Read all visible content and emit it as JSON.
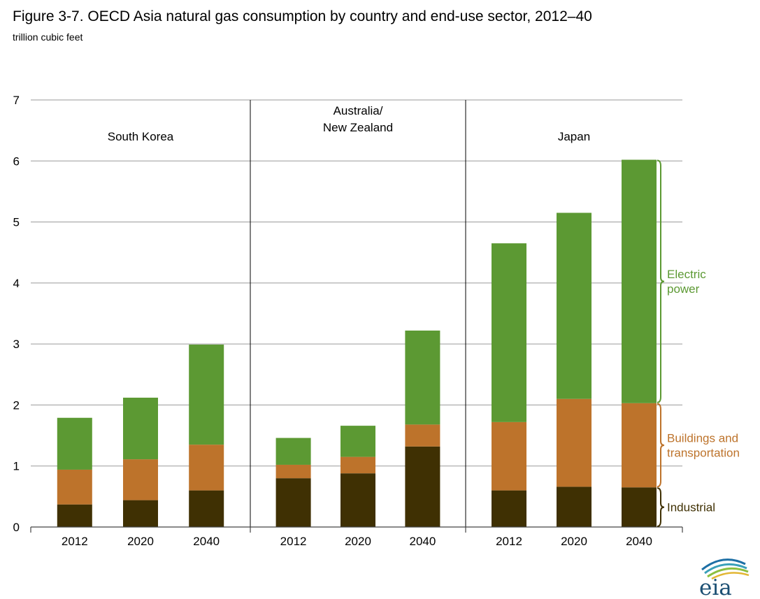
{
  "title": "Figure 3-7. OECD Asia natural gas consumption by country and end-use sector, 2012–40",
  "subtitle": "trillion cubic feet",
  "logo_text": "eia",
  "colors": {
    "industrial": "#3f3003",
    "buildings": "#bd732b",
    "electric": "#5c9933",
    "grid": "#9a9a9a",
    "axis": "#444444"
  },
  "chart_data": {
    "type": "bar",
    "stacked": true,
    "ylim": [
      0,
      7
    ],
    "yticks": [
      0,
      1,
      2,
      3,
      4,
      5,
      6,
      7
    ],
    "grid": true,
    "groups": [
      {
        "name": "South Korea",
        "label_lines": [
          "South Korea"
        ],
        "categories": [
          "2012",
          "2020",
          "2040"
        ]
      },
      {
        "name": "Australia/ New Zealand",
        "label_lines": [
          "Australia/",
          "New Zealand"
        ],
        "categories": [
          "2012",
          "2020",
          "2040"
        ]
      },
      {
        "name": "Japan",
        "label_lines": [
          "Japan"
        ],
        "categories": [
          "2012",
          "2020",
          "2040"
        ]
      }
    ],
    "series": [
      {
        "name": "Industrial",
        "label_lines": [
          "Industrial"
        ],
        "color": "#3f3003",
        "values": [
          0.37,
          0.44,
          0.6,
          0.8,
          0.88,
          1.32,
          0.6,
          0.66,
          0.65
        ]
      },
      {
        "name": "Buildings and transportation",
        "label_lines": [
          "Buildings and",
          "transportation"
        ],
        "color": "#bd732b",
        "values": [
          0.57,
          0.67,
          0.75,
          0.22,
          0.27,
          0.36,
          1.12,
          1.44,
          1.38
        ]
      },
      {
        "name": "Electric power",
        "label_lines": [
          "Electric",
          "power"
        ],
        "color": "#5c9933",
        "values": [
          0.85,
          1.01,
          1.64,
          0.44,
          0.51,
          1.54,
          2.93,
          3.05,
          3.99
        ]
      }
    ]
  }
}
